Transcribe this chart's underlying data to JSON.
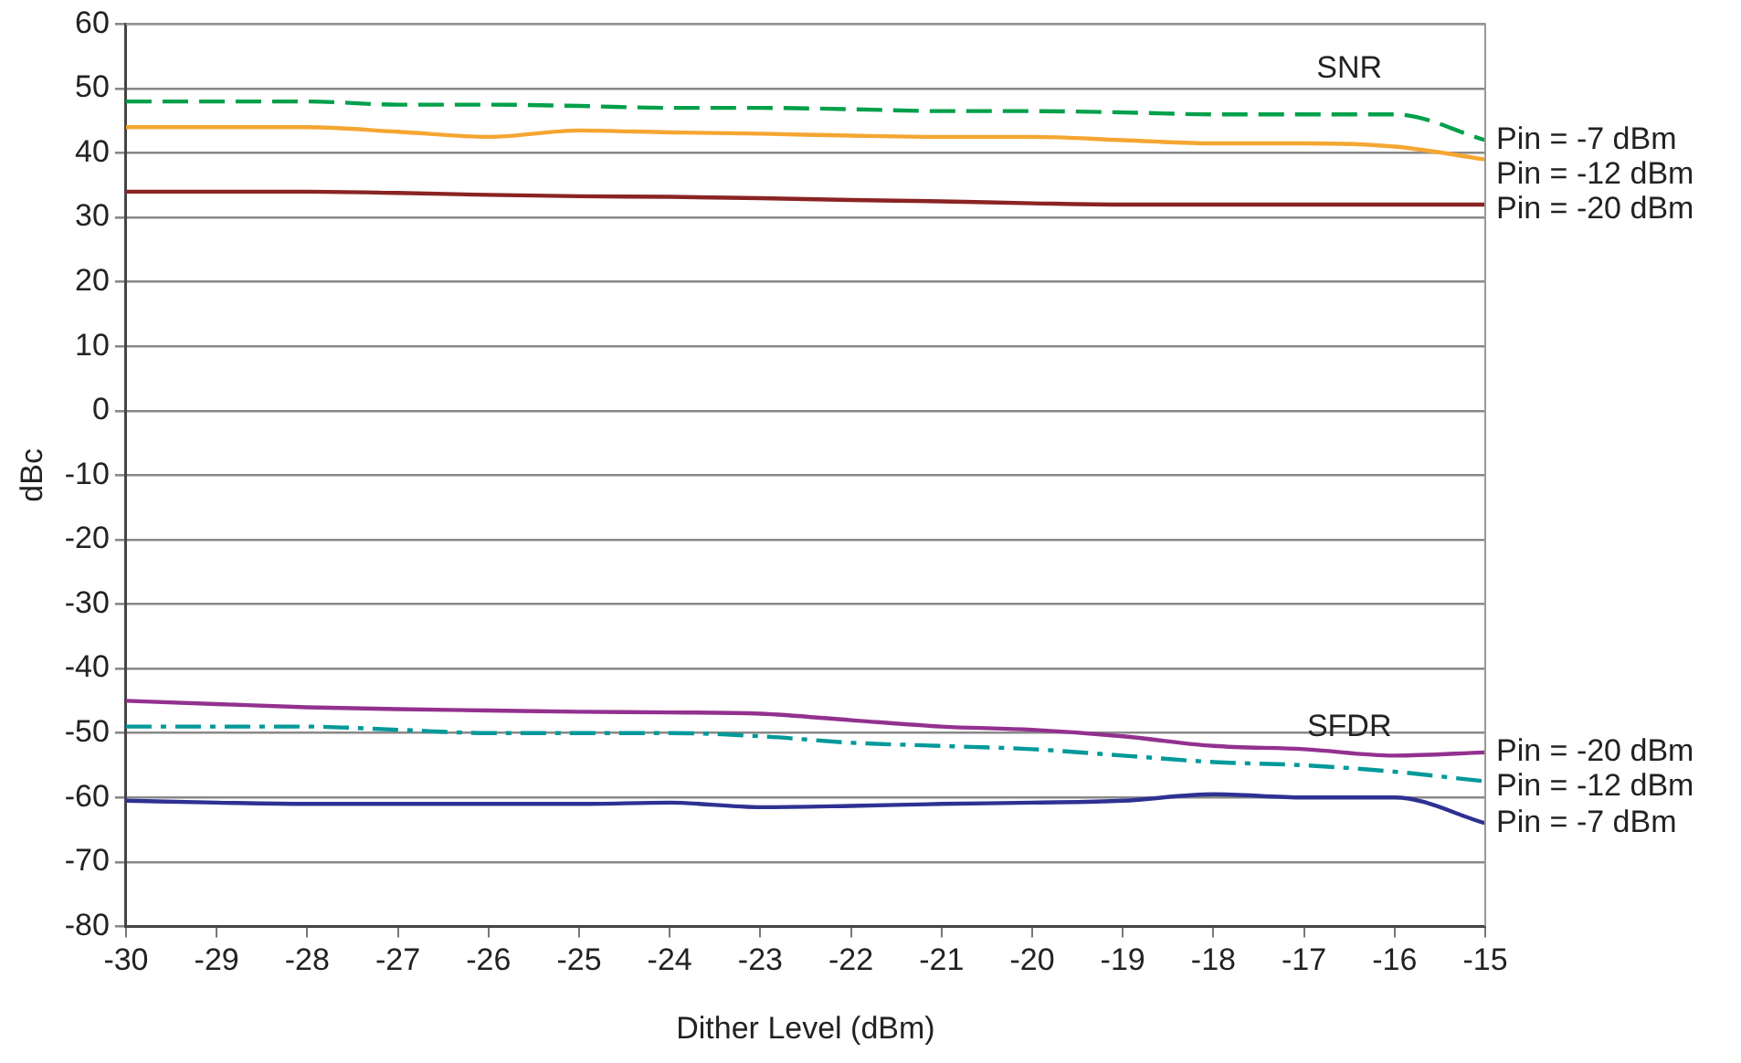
{
  "chart_data": {
    "type": "line",
    "xlabel": "Dither Level (dBm)",
    "ylabel": "dBc",
    "x": [
      -30,
      -29,
      -28,
      -27,
      -26,
      -25,
      -24,
      -23,
      -22,
      -21,
      -20,
      -19,
      -18,
      -17,
      -16,
      -15
    ],
    "xlim": [
      -30,
      -15
    ],
    "xticks": [
      -30,
      -29,
      -28,
      -27,
      -26,
      -25,
      -24,
      -23,
      -22,
      -21,
      -20,
      -19,
      -18,
      -17,
      -16,
      -15
    ],
    "ylim": [
      -80,
      60
    ],
    "yticks": [
      -80,
      -70,
      -60,
      -50,
      -40,
      -30,
      -20,
      -10,
      0,
      10,
      20,
      30,
      40,
      50,
      60
    ],
    "grid": "y",
    "legend": false,
    "marker": "none",
    "annotations": [
      "SNR",
      "SFDR"
    ],
    "series": [
      {
        "name": "Pin = -7 dBm",
        "color": "#00a04a",
        "line_style": "dashed",
        "values": [
          48,
          48,
          48,
          47.5,
          47.5,
          47.3,
          47,
          47,
          46.8,
          46.5,
          46.5,
          46.3,
          46,
          46,
          46,
          42
        ]
      },
      {
        "name": "Pin = -12 dBm",
        "color": "#f5a631",
        "line_style": "solid",
        "values": [
          44,
          44,
          44,
          43.3,
          42.5,
          43.5,
          43.2,
          43,
          42.7,
          42.5,
          42.5,
          42,
          41.5,
          41.5,
          41,
          39
        ]
      },
      {
        "name": "Pin = -20 dBm",
        "color": "#8b2323",
        "line_style": "solid",
        "values": [
          34,
          34,
          34,
          33.8,
          33.5,
          33.3,
          33.2,
          33,
          32.7,
          32.5,
          32.2,
          32,
          32,
          32,
          32,
          32
        ]
      },
      {
        "name": "Pin = -20 dBm",
        "color": "#93318f",
        "line_style": "solid",
        "values": [
          -45,
          -45.5,
          -46,
          -46.3,
          -46.5,
          -46.7,
          -46.8,
          -47,
          -48,
          -49,
          -49.5,
          -50.5,
          -52,
          -52.5,
          -53.5,
          -53
        ]
      },
      {
        "name": "Pin = -12 dBm",
        "color": "#00999a",
        "line_style": "dashdot",
        "values": [
          -49,
          -49,
          -49,
          -49.5,
          -50,
          -50,
          -50,
          -50.5,
          -51.5,
          -52,
          -52.5,
          -53.5,
          -54.5,
          -55,
          -56,
          -57.5
        ]
      },
      {
        "name": "Pin = -7 dBm",
        "color": "#2e3192",
        "line_style": "solid",
        "values": [
          -60.5,
          -60.8,
          -61,
          -61,
          -61,
          -61,
          -60.8,
          -61.5,
          -61.3,
          -61,
          -60.8,
          -60.5,
          -59.5,
          -60,
          -60,
          -64
        ]
      }
    ]
  }
}
